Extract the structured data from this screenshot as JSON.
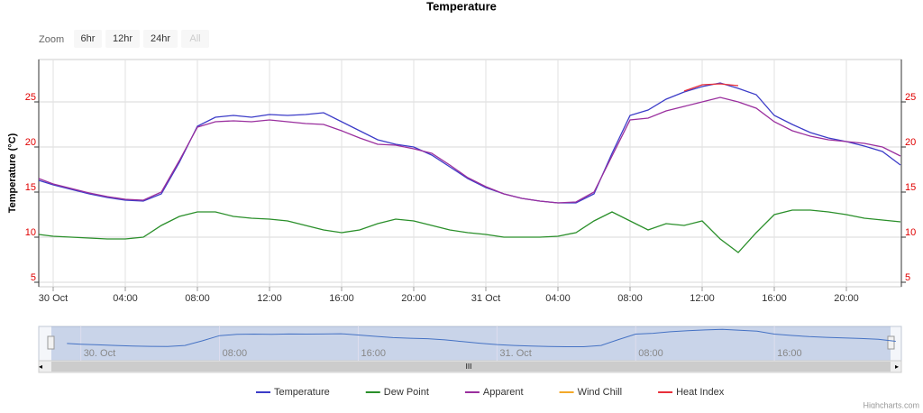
{
  "chart_data": {
    "type": "line",
    "title": "Temperature",
    "y_axis_title": "Temperature (°C)",
    "zoom_label": "Zoom",
    "zoom_buttons": [
      "6hr",
      "12hr",
      "24hr",
      "All"
    ],
    "credits": "Highcharts.com",
    "x": [
      -0.8,
      0,
      1,
      2,
      3,
      4,
      5,
      6,
      7,
      8,
      9,
      10,
      11,
      12,
      13,
      14,
      15,
      16,
      17,
      18,
      19,
      20,
      21,
      22,
      23,
      24,
      25,
      26,
      27,
      28,
      29,
      30,
      31,
      32,
      33,
      34,
      35,
      36,
      37,
      38,
      39,
      40,
      41,
      42,
      43,
      44,
      45,
      46,
      47
    ],
    "xlim": [
      -0.8,
      47.05
    ],
    "xticks": [
      {
        "value": 0,
        "label": "30 Oct"
      },
      {
        "value": 4,
        "label": "04:00"
      },
      {
        "value": 8,
        "label": "08:00"
      },
      {
        "value": 12,
        "label": "12:00"
      },
      {
        "value": 16,
        "label": "16:00"
      },
      {
        "value": 20,
        "label": "20:00"
      },
      {
        "value": 24,
        "label": "31 Oct"
      },
      {
        "value": 28,
        "label": "04:00"
      },
      {
        "value": 32,
        "label": "08:00"
      },
      {
        "value": 36,
        "label": "12:00"
      },
      {
        "value": 40,
        "label": "16:00"
      },
      {
        "value": 44,
        "label": "20:00"
      }
    ],
    "ylim": [
      4.5,
      29.7
    ],
    "yticks": [
      5,
      10,
      15,
      20,
      25
    ],
    "y2lim": [
      4.5,
      29.7
    ],
    "y2ticks": [
      5,
      10,
      15,
      20,
      25
    ],
    "grid": true,
    "tick_label_color": "#e00000",
    "series": [
      {
        "name": "Temperature",
        "color": "#3c3cc8",
        "values": [
          16.3,
          15.8,
          15.3,
          14.8,
          14.4,
          14.1,
          14.0,
          14.8,
          18.3,
          22.3,
          23.3,
          23.5,
          23.3,
          23.6,
          23.5,
          23.6,
          23.8,
          22.8,
          21.8,
          20.8,
          20.3,
          20.0,
          19.1,
          17.8,
          16.5,
          15.5,
          14.8,
          14.3,
          14.0,
          13.8,
          13.8,
          14.8,
          19.3,
          23.5,
          24.1,
          25.3,
          26.1,
          26.7,
          27.1,
          26.5,
          25.8,
          23.5,
          22.5,
          21.6,
          21.0,
          20.6,
          20.1,
          19.5,
          18.0
        ]
      },
      {
        "name": "Dew Point",
        "color": "#2a8f2a",
        "values": [
          10.3,
          10.1,
          10.0,
          9.9,
          9.8,
          9.8,
          10.0,
          11.3,
          12.3,
          12.8,
          12.8,
          12.3,
          12.1,
          12.0,
          11.8,
          11.3,
          10.8,
          10.5,
          10.8,
          11.5,
          12.0,
          11.8,
          11.3,
          10.8,
          10.5,
          10.3,
          10.0,
          10.0,
          10.0,
          10.1,
          10.5,
          11.8,
          12.8,
          11.8,
          10.8,
          11.5,
          11.3,
          11.8,
          9.8,
          8.3,
          10.5,
          12.5,
          13.0,
          13.0,
          12.8,
          12.5,
          12.1,
          11.9,
          11.7
        ]
      },
      {
        "name": "Apparent",
        "color": "#9a2f9e",
        "values": [
          16.5,
          15.9,
          15.4,
          14.9,
          14.5,
          14.2,
          14.1,
          15.0,
          18.5,
          22.2,
          22.8,
          22.9,
          22.8,
          23.0,
          22.8,
          22.6,
          22.5,
          21.8,
          21.0,
          20.3,
          20.2,
          19.8,
          19.3,
          18.0,
          16.6,
          15.6,
          14.8,
          14.3,
          14.0,
          13.8,
          13.9,
          15.0,
          19.0,
          23.0,
          23.2,
          24.0,
          24.5,
          25.0,
          25.5,
          25.0,
          24.3,
          22.8,
          21.8,
          21.2,
          20.8,
          20.6,
          20.4,
          20.0,
          19.0
        ]
      },
      {
        "name": "Wind Chill",
        "color": "#f3a92a",
        "values": [
          null,
          null,
          null,
          null,
          null,
          null,
          null,
          null,
          null,
          null,
          null,
          null,
          null,
          null,
          null,
          null,
          null,
          null,
          null,
          null,
          null,
          null,
          null,
          null,
          null,
          null,
          null,
          null,
          null,
          null,
          null,
          null,
          null,
          null,
          null,
          null,
          null,
          null,
          null,
          null,
          null,
          null,
          null,
          null,
          null,
          null,
          null,
          null,
          null
        ]
      },
      {
        "name": "Heat Index",
        "color": "#e8303a",
        "values": [
          null,
          null,
          null,
          null,
          null,
          null,
          null,
          null,
          null,
          null,
          null,
          null,
          null,
          null,
          null,
          null,
          null,
          null,
          null,
          null,
          null,
          null,
          null,
          null,
          null,
          null,
          null,
          null,
          null,
          null,
          null,
          null,
          null,
          null,
          null,
          null,
          26.2,
          26.9,
          27.0,
          26.8,
          null,
          null,
          null,
          null,
          null,
          null,
          null,
          null,
          null
        ]
      }
    ],
    "navigator": {
      "xlim": [
        -1.7,
        46.7
      ],
      "xticks": [
        {
          "value": 0,
          "label": "30. Oct"
        },
        {
          "value": 8,
          "label": "08:00"
        },
        {
          "value": 16,
          "label": "16:00"
        },
        {
          "value": 24,
          "label": "31. Oct"
        },
        {
          "value": 32,
          "label": "08:00"
        },
        {
          "value": 40,
          "label": "16:00"
        }
      ]
    }
  }
}
